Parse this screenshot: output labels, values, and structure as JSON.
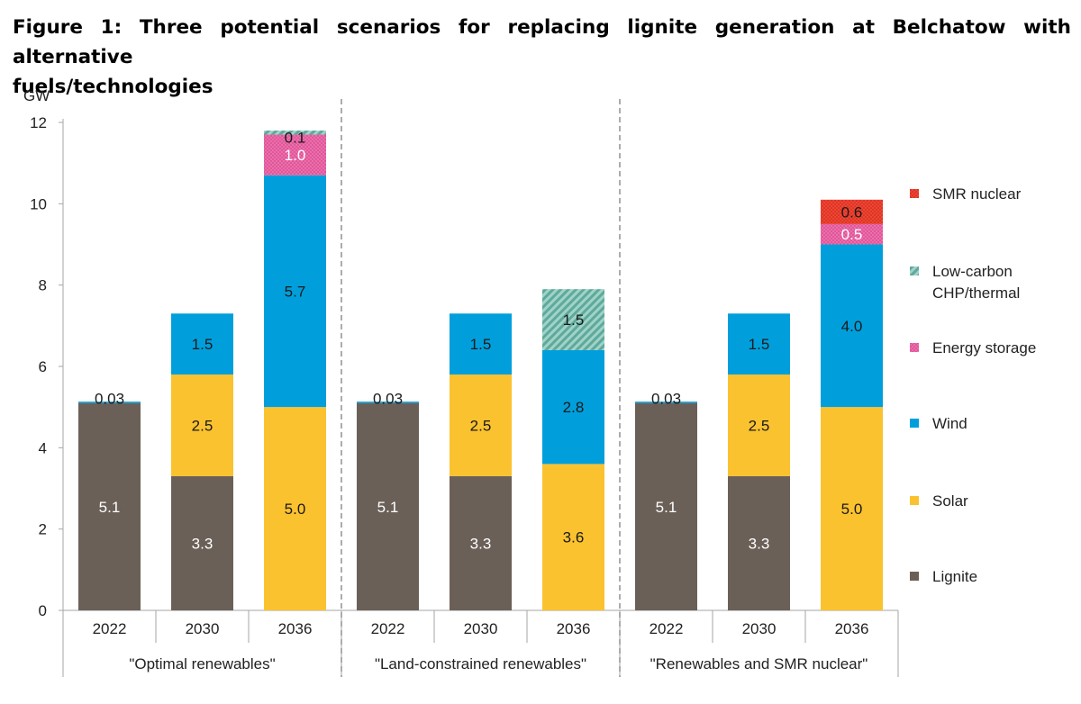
{
  "figure_title_line1": "Figure 1: Three potential scenarios for replacing lignite generation at Belchatow with alternative",
  "figure_title_line2": "fuels/technologies",
  "chart_data": {
    "type": "bar",
    "stacked": true,
    "ylabel": "GW",
    "ylim": [
      0,
      12
    ],
    "yticks": [
      0,
      2,
      4,
      6,
      8,
      10,
      12
    ],
    "grid": false,
    "legend_position": "right",
    "groups": [
      {
        "name": "\"Optimal renewables\"",
        "categories": [
          "2022",
          "2030",
          "2036"
        ]
      },
      {
        "name": "\"Land-constrained renewables\"",
        "categories": [
          "2022",
          "2030",
          "2036"
        ]
      },
      {
        "name": "\"Renewables and SMR nuclear\"",
        "categories": [
          "2022",
          "2030",
          "2036"
        ]
      }
    ],
    "series": [
      {
        "name": "Lignite",
        "color": "#6b6058",
        "values": [
          5.1,
          3.3,
          0,
          5.1,
          3.3,
          0,
          5.1,
          3.3,
          0
        ],
        "labels": [
          "5.1",
          "3.3",
          "",
          "5.1",
          "3.3",
          "",
          "5.1",
          "3.3",
          ""
        ]
      },
      {
        "name": "Solar",
        "color": "#fbc230",
        "values": [
          0,
          2.5,
          5.0,
          0,
          2.5,
          3.6,
          0,
          2.5,
          5.0
        ],
        "labels": [
          "",
          "2.5",
          "5.0",
          "",
          "2.5",
          "3.6",
          "",
          "2.5",
          "5.0"
        ]
      },
      {
        "name": "Wind",
        "color": "#009fdc",
        "values": [
          0.03,
          1.5,
          5.7,
          0.03,
          1.5,
          2.8,
          0.03,
          1.5,
          4.0
        ],
        "labels": [
          "0.03",
          "1.5",
          "5.7",
          "0.03",
          "1.5",
          "2.8",
          "0.03",
          "1.5",
          "4.0"
        ]
      },
      {
        "name": "Energy storage",
        "color": "#e2559a",
        "values": [
          0,
          0,
          1.0,
          0,
          0,
          0,
          0,
          0,
          0.5
        ],
        "labels": [
          "",
          "",
          "1.0",
          "",
          "",
          "",
          "",
          "",
          "0.5"
        ]
      },
      {
        "name": "Low-carbon CHP/thermal",
        "color": "#7fc3b6",
        "values": [
          0,
          0,
          0.1,
          0,
          0,
          1.5,
          0,
          0,
          0
        ],
        "labels": [
          "",
          "",
          "0.1",
          "",
          "",
          "1.5",
          "",
          "",
          ""
        ]
      },
      {
        "name": "SMR nuclear",
        "color": "#ef4533",
        "values": [
          0,
          0,
          0,
          0,
          0,
          0,
          0,
          0,
          0.6
        ],
        "labels": [
          "",
          "",
          "",
          "",
          "",
          "",
          "",
          "",
          "0.6"
        ]
      }
    ],
    "legend": [
      {
        "name": "SMR nuclear",
        "lines": [
          "SMR nuclear"
        ],
        "color": "#ef4533"
      },
      {
        "name": "Low-carbon CHP/thermal",
        "lines": [
          "Low-carbon",
          "CHP/thermal"
        ],
        "color": "#7fc3b6"
      },
      {
        "name": "Energy storage",
        "lines": [
          "Energy storage"
        ],
        "color": "#e2559a"
      },
      {
        "name": "Wind",
        "lines": [
          "Wind"
        ],
        "color": "#009fdc"
      },
      {
        "name": "Solar",
        "lines": [
          "Solar"
        ],
        "color": "#fbc230"
      },
      {
        "name": "Lignite",
        "lines": [
          "Lignite"
        ],
        "color": "#6b6058"
      }
    ]
  }
}
